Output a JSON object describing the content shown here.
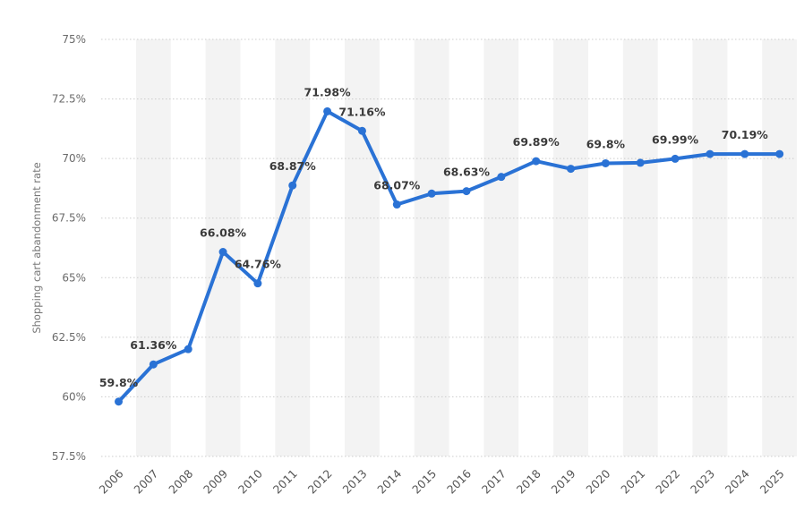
{
  "chart_data": {
    "type": "line",
    "title": "",
    "xlabel": "",
    "ylabel": "Shopping cart abandonment rate",
    "categories": [
      "2006",
      "2007",
      "2008",
      "2009",
      "2010",
      "2011",
      "2012",
      "2013",
      "2014",
      "2015",
      "2016",
      "2017",
      "2018",
      "2019",
      "2020",
      "2021",
      "2022",
      "2023",
      "2024",
      "2025"
    ],
    "series": [
      {
        "values": [
          59.8,
          61.36,
          62.0,
          66.08,
          64.76,
          68.87,
          71.98,
          71.16,
          68.07,
          68.53,
          68.63,
          69.23,
          69.89,
          69.57,
          69.8,
          69.82,
          69.99,
          70.19,
          70.19,
          70.19
        ]
      }
    ],
    "data_labels": {
      "0": "59.8%",
      "1": "61.36%",
      "3": "66.08%",
      "4": "64.76%",
      "5": "68.87%",
      "6": "71.98%",
      "7": "71.16%",
      "8": "68.07%",
      "10": "68.63%",
      "12": "69.89%",
      "14": "69.8%",
      "16": "69.99%",
      "18": "70.19%"
    },
    "ylim": [
      57.5,
      75
    ],
    "yticks": [
      57.5,
      60,
      62.5,
      65,
      67.5,
      70,
      72.5,
      75
    ],
    "ytick_labels": [
      "57.5%",
      "60%",
      "62.5%",
      "65%",
      "67.5%",
      "70%",
      "72.5%",
      "75%"
    ],
    "grid": "horizontal dotted",
    "alternating_column_bands": true,
    "colors": {
      "line": "#2a72d5",
      "band": "#f3f3f3",
      "grid": "#cccccc",
      "label": "#3a3a3a"
    }
  }
}
